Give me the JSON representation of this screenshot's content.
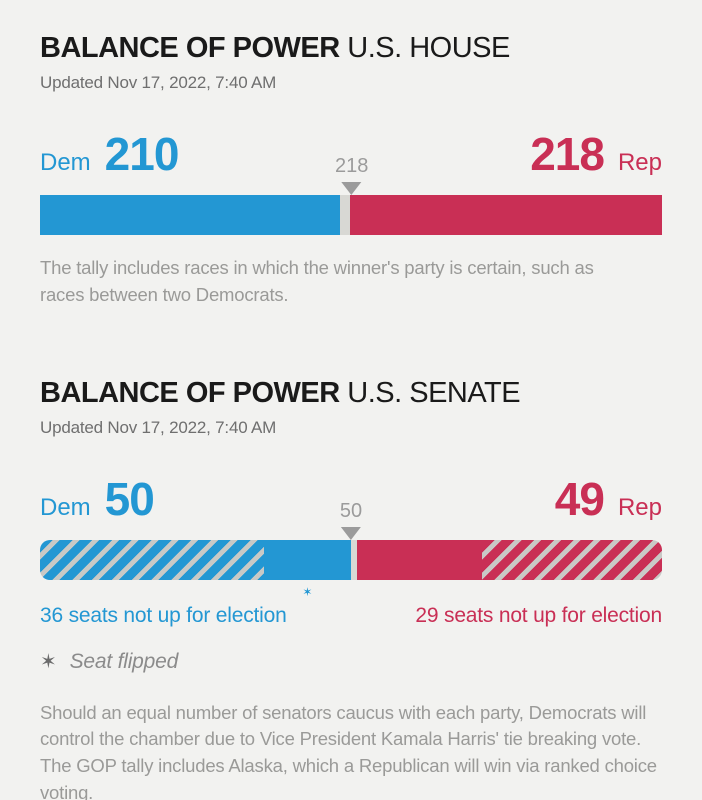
{
  "colors": {
    "dem": "#2397d3",
    "rep": "#c92f55",
    "undecided": "#d8d8d4",
    "hatch_gray": "#c9c9c6",
    "marker": "#9b9b9b",
    "background": "#f2f2f0"
  },
  "house": {
    "title_bold": "BALANCE OF POWER",
    "title_chamber": "U.S. HOUSE",
    "updated": "Updated Nov 17, 2022, 7:40 AM",
    "dem_party": "Dem",
    "dem_seats": "210",
    "rep_party": "Rep",
    "rep_seats": "218",
    "majority_label": "218",
    "note": "The tally includes races in which the winner's party is certain, such as races between two Democrats."
  },
  "senate": {
    "title_bold": "BALANCE OF POWER",
    "title_chamber": "U.S. SENATE",
    "updated": "Updated Nov 17, 2022, 7:40 AM",
    "dem_party": "Dem",
    "dem_seats": "50",
    "rep_party": "Rep",
    "rep_seats": "49",
    "majority_label": "50",
    "dem_not_up_label": "36 seats not up for election",
    "rep_not_up_label": "29 seats not up for election",
    "flip_star_icon": "✶",
    "legend_star_icon": "✶",
    "legend_label": "Seat flipped",
    "footnote": "Should an equal number of senators caucus with each party, Democrats will control the chamber due to Vice President Kamala Harris' tie breaking vote. The GOP tally includes Alaska, which a Republican will win via ranked choice voting."
  },
  "chart_data": [
    {
      "type": "bar",
      "title": "BALANCE OF POWER U.S. HOUSE",
      "subtitle": "Updated Nov 17, 2022, 7:40 AM",
      "total_seats": 435,
      "majority_marker": 218,
      "series": [
        {
          "name": "Dem",
          "seats": 210,
          "style": "solid",
          "color": "#2397d3"
        },
        {
          "name": "Undecided",
          "seats": 7,
          "style": "solid",
          "color": "#d8d8d4"
        },
        {
          "name": "Rep",
          "seats": 218,
          "style": "solid",
          "color": "#c92f55"
        }
      ],
      "annotations": [
        "Dem 210",
        "Rep 218",
        "majority threshold 218"
      ]
    },
    {
      "type": "bar",
      "title": "BALANCE OF POWER U.S. SENATE",
      "subtitle": "Updated Nov 17, 2022, 7:40 AM",
      "total_seats": 100,
      "majority_marker": 50,
      "series": [
        {
          "name": "Dem seats not up for election",
          "seats": 36,
          "style": "hatched",
          "color": "#2397d3"
        },
        {
          "name": "Dem elected",
          "seats": 14,
          "style": "solid",
          "color": "#2397d3"
        },
        {
          "name": "Undecided",
          "seats": 1,
          "style": "solid",
          "color": "#d8d8d4"
        },
        {
          "name": "Rep elected",
          "seats": 20,
          "style": "solid",
          "color": "#c92f55"
        },
        {
          "name": "Rep seats not up for election",
          "seats": 29,
          "style": "hatched",
          "color": "#c92f55"
        }
      ],
      "annotations": [
        "Dem 50",
        "Rep 49",
        "majority threshold 50",
        "Seat flipped marker under Dem elected segment"
      ]
    }
  ]
}
